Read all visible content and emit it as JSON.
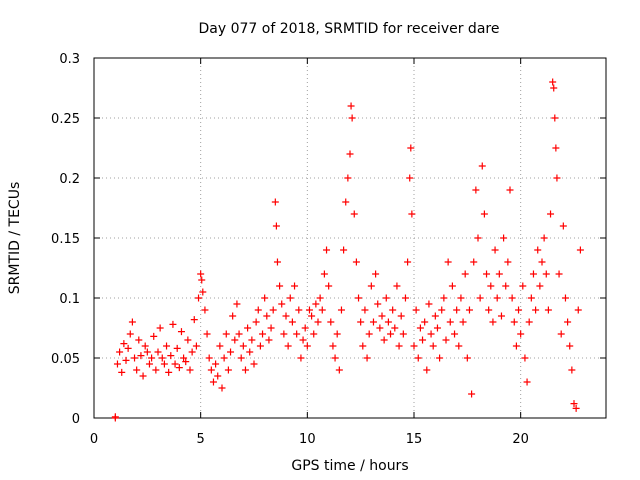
{
  "chart_data": {
    "type": "scatter",
    "title": "Day 077 of 2018, SRMTID for receiver dare",
    "xlabel": "GPS time / hours",
    "ylabel": "SRMTID / TECUs",
    "xlim": [
      0,
      24
    ],
    "ylim": [
      0,
      0.3
    ],
    "x_ticks": [
      0,
      5,
      10,
      15,
      20
    ],
    "x_tick_labels": [
      "0",
      "5",
      "10",
      "15",
      "20"
    ],
    "y_ticks": [
      0,
      0.05,
      0.1,
      0.15,
      0.2,
      0.25,
      0.3
    ],
    "y_tick_labels": [
      "0",
      "0.05",
      "0.1",
      "0.15",
      "0.2",
      "0.25",
      "0.3"
    ],
    "grid": true,
    "marker": "+",
    "color": "#ff0000",
    "series": [
      {
        "name": "SRMTID",
        "points": [
          [
            1.0,
            0.0
          ],
          [
            1.0,
            0.001
          ],
          [
            1.1,
            0.045
          ],
          [
            1.2,
            0.055
          ],
          [
            1.3,
            0.038
          ],
          [
            1.4,
            0.062
          ],
          [
            1.5,
            0.048
          ],
          [
            1.6,
            0.058
          ],
          [
            1.7,
            0.07
          ],
          [
            1.8,
            0.08
          ],
          [
            1.9,
            0.05
          ],
          [
            2.0,
            0.04
          ],
          [
            2.1,
            0.065
          ],
          [
            2.2,
            0.052
          ],
          [
            2.3,
            0.035
          ],
          [
            2.4,
            0.06
          ],
          [
            2.5,
            0.055
          ],
          [
            2.6,
            0.045
          ],
          [
            2.7,
            0.05
          ],
          [
            2.8,
            0.068
          ],
          [
            2.9,
            0.04
          ],
          [
            3.0,
            0.055
          ],
          [
            3.1,
            0.075
          ],
          [
            3.2,
            0.05
          ],
          [
            3.3,
            0.045
          ],
          [
            3.4,
            0.06
          ],
          [
            3.5,
            0.038
          ],
          [
            3.6,
            0.052
          ],
          [
            3.7,
            0.078
          ],
          [
            3.8,
            0.045
          ],
          [
            3.9,
            0.058
          ],
          [
            4.0,
            0.042
          ],
          [
            4.1,
            0.072
          ],
          [
            4.2,
            0.05
          ],
          [
            4.3,
            0.047
          ],
          [
            4.4,
            0.065
          ],
          [
            4.5,
            0.04
          ],
          [
            4.6,
            0.055
          ],
          [
            4.7,
            0.082
          ],
          [
            4.8,
            0.06
          ],
          [
            4.9,
            0.1
          ],
          [
            5.0,
            0.12
          ],
          [
            5.05,
            0.115
          ],
          [
            5.1,
            0.105
          ],
          [
            5.2,
            0.09
          ],
          [
            5.3,
            0.07
          ],
          [
            5.4,
            0.05
          ],
          [
            5.5,
            0.04
          ],
          [
            5.6,
            0.03
          ],
          [
            5.7,
            0.045
          ],
          [
            5.8,
            0.035
          ],
          [
            5.9,
            0.06
          ],
          [
            6.0,
            0.025
          ],
          [
            6.1,
            0.05
          ],
          [
            6.2,
            0.07
          ],
          [
            6.3,
            0.04
          ],
          [
            6.4,
            0.055
          ],
          [
            6.5,
            0.085
          ],
          [
            6.6,
            0.065
          ],
          [
            6.7,
            0.095
          ],
          [
            6.8,
            0.07
          ],
          [
            6.9,
            0.05
          ],
          [
            7.0,
            0.06
          ],
          [
            7.1,
            0.04
          ],
          [
            7.2,
            0.075
          ],
          [
            7.3,
            0.055
          ],
          [
            7.4,
            0.065
          ],
          [
            7.5,
            0.045
          ],
          [
            7.6,
            0.08
          ],
          [
            7.7,
            0.09
          ],
          [
            7.8,
            0.06
          ],
          [
            7.9,
            0.07
          ],
          [
            8.0,
            0.1
          ],
          [
            8.1,
            0.085
          ],
          [
            8.2,
            0.065
          ],
          [
            8.3,
            0.075
          ],
          [
            8.4,
            0.09
          ],
          [
            8.5,
            0.18
          ],
          [
            8.55,
            0.16
          ],
          [
            8.6,
            0.13
          ],
          [
            8.7,
            0.11
          ],
          [
            8.8,
            0.095
          ],
          [
            8.9,
            0.07
          ],
          [
            9.0,
            0.085
          ],
          [
            9.1,
            0.06
          ],
          [
            9.2,
            0.1
          ],
          [
            9.3,
            0.08
          ],
          [
            9.4,
            0.11
          ],
          [
            9.5,
            0.07
          ],
          [
            9.6,
            0.09
          ],
          [
            9.7,
            0.05
          ],
          [
            9.8,
            0.065
          ],
          [
            9.9,
            0.075
          ],
          [
            10.0,
            0.06
          ],
          [
            10.1,
            0.09
          ],
          [
            10.2,
            0.085
          ],
          [
            10.3,
            0.07
          ],
          [
            10.4,
            0.095
          ],
          [
            10.5,
            0.08
          ],
          [
            10.6,
            0.1
          ],
          [
            10.7,
            0.09
          ],
          [
            10.8,
            0.12
          ],
          [
            10.9,
            0.14
          ],
          [
            11.0,
            0.11
          ],
          [
            11.1,
            0.08
          ],
          [
            11.2,
            0.06
          ],
          [
            11.3,
            0.05
          ],
          [
            11.4,
            0.07
          ],
          [
            11.5,
            0.04
          ],
          [
            11.6,
            0.09
          ],
          [
            11.7,
            0.14
          ],
          [
            11.8,
            0.18
          ],
          [
            11.9,
            0.2
          ],
          [
            12.0,
            0.22
          ],
          [
            12.05,
            0.26
          ],
          [
            12.1,
            0.25
          ],
          [
            12.2,
            0.17
          ],
          [
            12.3,
            0.13
          ],
          [
            12.4,
            0.1
          ],
          [
            12.5,
            0.08
          ],
          [
            12.6,
            0.06
          ],
          [
            12.7,
            0.09
          ],
          [
            12.8,
            0.05
          ],
          [
            12.9,
            0.07
          ],
          [
            13.0,
            0.11
          ],
          [
            13.1,
            0.08
          ],
          [
            13.2,
            0.12
          ],
          [
            13.3,
            0.095
          ],
          [
            13.4,
            0.075
          ],
          [
            13.5,
            0.085
          ],
          [
            13.6,
            0.065
          ],
          [
            13.7,
            0.1
          ],
          [
            13.8,
            0.08
          ],
          [
            13.9,
            0.07
          ],
          [
            14.0,
            0.09
          ],
          [
            14.1,
            0.075
          ],
          [
            14.2,
            0.11
          ],
          [
            14.3,
            0.06
          ],
          [
            14.4,
            0.085
          ],
          [
            14.5,
            0.07
          ],
          [
            14.6,
            0.1
          ],
          [
            14.7,
            0.13
          ],
          [
            14.8,
            0.2
          ],
          [
            14.85,
            0.225
          ],
          [
            14.9,
            0.17
          ],
          [
            15.0,
            0.06
          ],
          [
            15.1,
            0.09
          ],
          [
            15.2,
            0.05
          ],
          [
            15.3,
            0.075
          ],
          [
            15.4,
            0.065
          ],
          [
            15.5,
            0.08
          ],
          [
            15.6,
            0.04
          ],
          [
            15.7,
            0.095
          ],
          [
            15.8,
            0.07
          ],
          [
            15.9,
            0.06
          ],
          [
            16.0,
            0.085
          ],
          [
            16.1,
            0.075
          ],
          [
            16.2,
            0.05
          ],
          [
            16.3,
            0.09
          ],
          [
            16.4,
            0.1
          ],
          [
            16.5,
            0.065
          ],
          [
            16.6,
            0.13
          ],
          [
            16.7,
            0.08
          ],
          [
            16.8,
            0.11
          ],
          [
            16.9,
            0.07
          ],
          [
            17.0,
            0.09
          ],
          [
            17.1,
            0.06
          ],
          [
            17.2,
            0.1
          ],
          [
            17.3,
            0.08
          ],
          [
            17.4,
            0.12
          ],
          [
            17.5,
            0.05
          ],
          [
            17.6,
            0.09
          ],
          [
            17.7,
            0.02
          ],
          [
            17.8,
            0.13
          ],
          [
            17.9,
            0.19
          ],
          [
            18.0,
            0.15
          ],
          [
            18.1,
            0.1
          ],
          [
            18.2,
            0.21
          ],
          [
            18.3,
            0.17
          ],
          [
            18.4,
            0.12
          ],
          [
            18.5,
            0.09
          ],
          [
            18.6,
            0.11
          ],
          [
            18.7,
            0.08
          ],
          [
            18.8,
            0.14
          ],
          [
            18.9,
            0.1
          ],
          [
            19.0,
            0.12
          ],
          [
            19.1,
            0.085
          ],
          [
            19.2,
            0.15
          ],
          [
            19.3,
            0.11
          ],
          [
            19.4,
            0.13
          ],
          [
            19.5,
            0.19
          ],
          [
            19.6,
            0.1
          ],
          [
            19.7,
            0.08
          ],
          [
            19.8,
            0.06
          ],
          [
            19.9,
            0.09
          ],
          [
            20.0,
            0.07
          ],
          [
            20.1,
            0.11
          ],
          [
            20.2,
            0.05
          ],
          [
            20.3,
            0.03
          ],
          [
            20.4,
            0.08
          ],
          [
            20.5,
            0.1
          ],
          [
            20.6,
            0.12
          ],
          [
            20.7,
            0.09
          ],
          [
            20.8,
            0.14
          ],
          [
            20.9,
            0.11
          ],
          [
            21.0,
            0.13
          ],
          [
            21.1,
            0.15
          ],
          [
            21.2,
            0.12
          ],
          [
            21.3,
            0.09
          ],
          [
            21.4,
            0.17
          ],
          [
            21.5,
            0.28
          ],
          [
            21.55,
            0.275
          ],
          [
            21.6,
            0.25
          ],
          [
            21.65,
            0.225
          ],
          [
            21.7,
            0.2
          ],
          [
            21.8,
            0.12
          ],
          [
            21.9,
            0.07
          ],
          [
            22.0,
            0.16
          ],
          [
            22.1,
            0.1
          ],
          [
            22.2,
            0.08
          ],
          [
            22.3,
            0.06
          ],
          [
            22.4,
            0.04
          ],
          [
            22.5,
            0.012
          ],
          [
            22.6,
            0.008
          ],
          [
            22.7,
            0.09
          ],
          [
            22.8,
            0.14
          ]
        ]
      }
    ]
  }
}
